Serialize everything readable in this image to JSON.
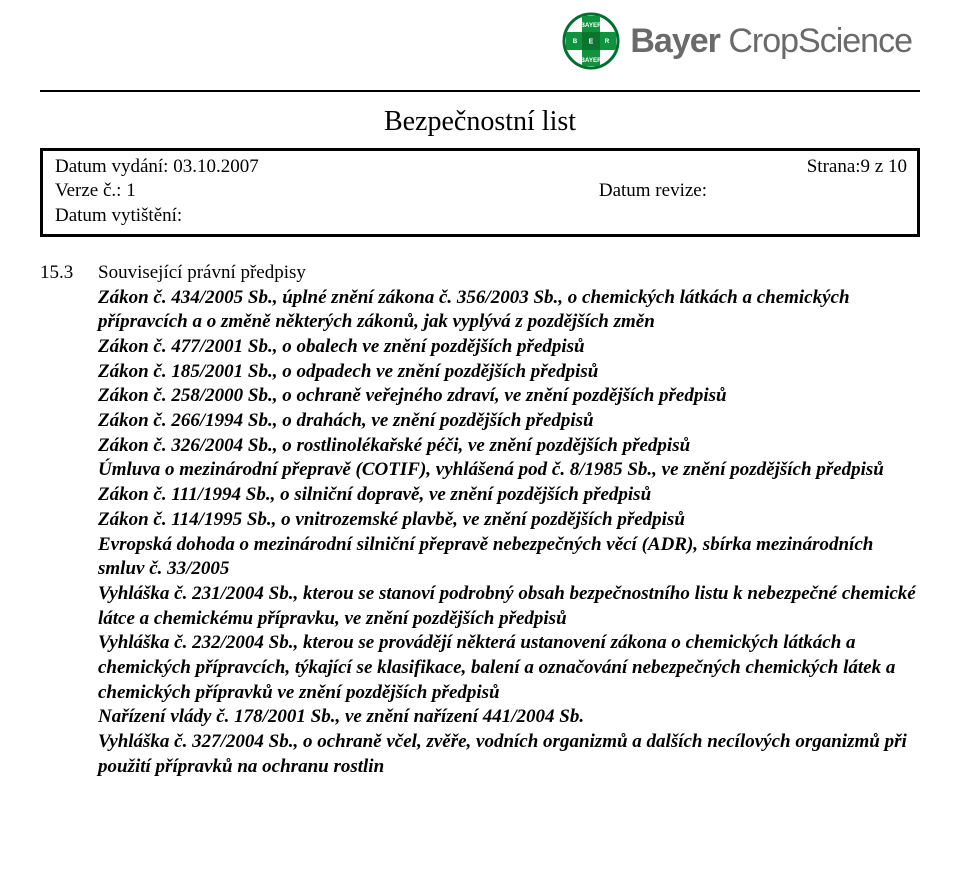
{
  "logo": {
    "brand_bold": "Bayer",
    "brand_light": " CropScience"
  },
  "title": "Bezpečnostní list",
  "meta": {
    "issue_date_label": "Datum vydání: ",
    "issue_date_value": "03.10.2007",
    "page_info": "Strana:9 z 10",
    "version_label": "Verze č.: ",
    "version_value": "1",
    "revision_label": "Datum revize:",
    "print_date_label": "Datum vytištění:"
  },
  "section": {
    "number": "15.3",
    "heading": "Související právní předpisy",
    "body_lines": [
      [
        {
          "t": "Zákon č. 434/2005 Sb.",
          "c": "bi"
        },
        {
          "t": ", úplné znění zákona č. 356/2003 Sb., o chemických látkách a chemických přípravcích a o změně některých zákonů, jak vyplývá z pozdějších změn",
          "c": "bi"
        }
      ],
      [
        {
          "t": "Zákon č. 477/2001 Sb.",
          "c": "bi"
        },
        {
          "t": ", o obalech ve znění pozdějších předpisů",
          "c": "bi"
        }
      ],
      [
        {
          "t": "Zákon č. 185/2001 Sb.",
          "c": "bi"
        },
        {
          "t": ", o odpadech ve znění pozdějších předpisů",
          "c": "bi"
        }
      ],
      [
        {
          "t": "Zákon č. 258/2000 Sb.",
          "c": "bi"
        },
        {
          "t": ", o ochraně veřejného zdraví, ve znění pozdějších předpisů",
          "c": "bi"
        }
      ],
      [
        {
          "t": "Zákon č. 266/1994 Sb.",
          "c": "bi"
        },
        {
          "t": ", o drahách, ve znění pozdějších předpisů",
          "c": "bi"
        }
      ],
      [
        {
          "t": "Zákon č. 326/2004 Sb.",
          "c": "bi"
        },
        {
          "t": ", o rostlinolékařské péči, ve znění pozdějších předpisů",
          "c": "bi"
        }
      ],
      [
        {
          "t": "Úmluva o mezinárodní přepravě (COTIF), vyhlášená pod č. 8/1985 Sb., ve znění pozdějších předpisů",
          "c": "bi"
        }
      ],
      [
        {
          "t": "Zákon č. 111/1994 Sb.",
          "c": "bi"
        },
        {
          "t": ", o silniční dopravě, ve znění pozdějších předpisů",
          "c": "bi"
        }
      ],
      [
        {
          "t": "Zákon č. 114/1995 Sb.",
          "c": "bi"
        },
        {
          "t": ", o vnitrozemské plavbě, ve znění pozdějších předpisů",
          "c": "bi"
        }
      ],
      [
        {
          "t": "Evropská dohoda o mezinárodní silniční přepravě nebezpečných věcí (ADR), sbírka mezinárodních smluv č. 33/2005",
          "c": "bi"
        }
      ],
      [
        {
          "t": "Vyhláška č. 231/2004 Sb.",
          "c": "bi"
        },
        {
          "t": ", kterou se stanoví podrobný obsah bezpečnostního listu k nebezpečné chemické látce a chemickému přípravku, ve znění pozdějších předpisů",
          "c": "bi"
        }
      ],
      [
        {
          "t": "Vyhláška č. 232/2004 Sb.",
          "c": "bi"
        },
        {
          "t": ", kterou se provádějí některá ustanovení zákona o chemických látkách a chemických přípravcích, týkající se klasifikace, balení a označování nebezpečných chemických látek a chemických přípravků ve znění pozdějších předpisů",
          "c": "bi"
        }
      ],
      [
        {
          "t": "Nařízení vlády č. 178/2001 Sb., ve znění nařízení 441/2004 Sb.",
          "c": "bi"
        }
      ],
      [
        {
          "t": "Vyhláška č. 327/2004 Sb.",
          "c": "bi"
        },
        {
          "t": ", o ochraně včel, zvěře, vodních organizmů a dalších necílových organizmů při použití přípravků na ochranu rostlin",
          "c": "bi"
        }
      ]
    ]
  }
}
